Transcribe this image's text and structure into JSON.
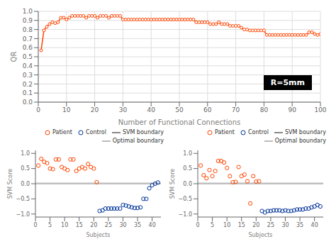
{
  "chart_data": [
    {
      "type": "line",
      "xlabel": "Number of Functional Connections",
      "ylabel": "QR",
      "annotations": [
        "R=5mm"
      ],
      "x": [
        1,
        2,
        3,
        4,
        5,
        6,
        7,
        8,
        9,
        10,
        11,
        12,
        13,
        14,
        15,
        16,
        17,
        18,
        19,
        20,
        21,
        22,
        23,
        24,
        25,
        26,
        27,
        28,
        29,
        30,
        31,
        32,
        33,
        34,
        35,
        36,
        37,
        38,
        39,
        40,
        41,
        42,
        43,
        44,
        45,
        46,
        47,
        48,
        49,
        50,
        51,
        52,
        53,
        54,
        55,
        56,
        57,
        58,
        59,
        60,
        61,
        62,
        63,
        64,
        65,
        66,
        67,
        68,
        69,
        70,
        71,
        72,
        73,
        74,
        75,
        76,
        77,
        78,
        79,
        80,
        81,
        82,
        83,
        84,
        85,
        86,
        87,
        88,
        89,
        90,
        91,
        92,
        93,
        94,
        95,
        96,
        97,
        98,
        99,
        100
      ],
      "values": [
        0.57,
        0.79,
        0.83,
        0.86,
        0.88,
        0.87,
        0.88,
        0.93,
        0.93,
        0.91,
        0.93,
        0.95,
        0.95,
        0.95,
        0.95,
        0.95,
        0.93,
        0.95,
        0.95,
        0.95,
        0.93,
        0.95,
        0.95,
        0.95,
        0.93,
        0.95,
        0.95,
        0.95,
        0.95,
        0.91,
        0.91,
        0.91,
        0.91,
        0.91,
        0.91,
        0.91,
        0.91,
        0.91,
        0.91,
        0.91,
        0.91,
        0.91,
        0.91,
        0.91,
        0.91,
        0.91,
        0.91,
        0.91,
        0.91,
        0.91,
        0.91,
        0.91,
        0.91,
        0.91,
        0.91,
        0.88,
        0.88,
        0.88,
        0.88,
        0.88,
        0.86,
        0.86,
        0.86,
        0.88,
        0.86,
        0.86,
        0.86,
        0.84,
        0.84,
        0.84,
        0.84,
        0.82,
        0.8,
        0.8,
        0.79,
        0.79,
        0.79,
        0.79,
        0.79,
        0.79,
        0.74,
        0.74,
        0.74,
        0.74,
        0.74,
        0.74,
        0.74,
        0.74,
        0.74,
        0.74,
        0.74,
        0.74,
        0.74,
        0.74,
        0.74,
        0.77,
        0.77,
        0.75,
        0.74,
        0.75
      ],
      "color": "#FF4400",
      "marker": "circle",
      "xlim": [
        0,
        100
      ],
      "ylim": [
        0,
        1.0
      ],
      "xticks": [
        0,
        10,
        20,
        30,
        40,
        50,
        60,
        70,
        80,
        90,
        100
      ],
      "yticks": [
        {
          "value": 0,
          "label": "0.0"
        },
        0.1,
        0.2,
        0.3,
        0.4,
        0.5,
        0.6,
        0.7,
        0.8,
        0.9,
        {
          "value": 1.0,
          "label": "1.0"
        }
      ],
      "grid": true
    },
    {
      "type": "scatter",
      "xlabel": "Subjects",
      "ylabel": "SVM Score",
      "series": [
        {
          "name": "Patient",
          "color": "#FF4400",
          "marker": "open_circle",
          "x": [
            1,
            2,
            3,
            4,
            5,
            6,
            7,
            8,
            9,
            10,
            11,
            12,
            13,
            14,
            15,
            16,
            17,
            18,
            19,
            20,
            21
          ],
          "values": [
            0.6,
            0.82,
            0.72,
            0.68,
            0.5,
            0.48,
            0.8,
            0.8,
            0.55,
            0.5,
            0.45,
            0.8,
            0.8,
            0.42,
            0.5,
            0.55,
            0.5,
            0.65,
            0.55,
            0.5,
            0.05
          ]
        },
        {
          "name": "Control",
          "color": "#003399",
          "marker": "open_circle",
          "x": [
            22,
            23,
            24,
            25,
            26,
            27,
            28,
            29,
            30,
            31,
            32,
            33,
            34,
            35,
            36,
            37,
            38,
            39,
            40,
            41,
            42
          ],
          "values": [
            -0.9,
            -0.88,
            -0.82,
            -0.82,
            -0.82,
            -0.82,
            -0.82,
            -0.82,
            -0.7,
            -0.72,
            -0.75,
            -0.78,
            -0.8,
            -0.8,
            -0.78,
            -0.5,
            -0.5,
            -0.15,
            -0.05,
            0.0,
            0.04
          ]
        },
        {
          "name": "SVM boundary",
          "type": "hline",
          "color": "#888888",
          "value": 0
        },
        {
          "name": "Optimal boundary",
          "type": "hline",
          "color": "#BBBBBB",
          "value": 0.02
        }
      ],
      "xlim": [
        0,
        43
      ],
      "ylim": [
        -1.1,
        1.1
      ],
      "xticks": [
        0,
        5,
        10,
        15,
        20,
        25,
        30,
        35,
        40
      ],
      "yticks": [
        {
          "value": -1,
          "label": "−1.0"
        },
        {
          "value": -0.5,
          "label": "−0.5"
        },
        {
          "value": 0,
          "label": "0.0"
        },
        0.5,
        {
          "value": 1,
          "label": "1.0"
        }
      ],
      "legend": "upper right",
      "grid": false
    },
    {
      "type": "scatter",
      "xlabel": "Subjects",
      "ylabel": "SVM Score",
      "series": [
        {
          "name": "Patient",
          "color": "#FF4400",
          "marker": "open_circle",
          "x": [
            1,
            2,
            3,
            4,
            5,
            6,
            7,
            8,
            9,
            10,
            11,
            12,
            13,
            14,
            15,
            16,
            17,
            18,
            19,
            20,
            21
          ],
          "values": [
            0.6,
            0.28,
            0.18,
            0.45,
            0.25,
            0.42,
            0.75,
            0.75,
            0.7,
            0.52,
            0.25,
            0.05,
            0.06,
            0.55,
            0.25,
            0.3,
            0.08,
            -0.65,
            0.25,
            0.07,
            0.08
          ]
        },
        {
          "name": "Control",
          "color": "#003399",
          "marker": "open_circle",
          "x": [
            22,
            23,
            24,
            25,
            26,
            27,
            28,
            29,
            30,
            31,
            32,
            33,
            34,
            35,
            36,
            37,
            38,
            39,
            40,
            41,
            42
          ],
          "values": [
            -0.9,
            -0.95,
            -0.9,
            -0.9,
            -0.88,
            -0.88,
            -0.88,
            -0.9,
            -0.88,
            -0.9,
            -0.9,
            -0.88,
            -0.85,
            -0.85,
            -0.85,
            -0.82,
            -0.82,
            -0.78,
            -0.75,
            -0.7,
            -0.75
          ]
        },
        {
          "name": "SVM boundary",
          "type": "hline",
          "color": "#888888",
          "value": 0
        },
        {
          "name": "Optimal boundary",
          "type": "hline",
          "color": "#BBBBBB",
          "value": 0.02
        }
      ],
      "xlim": [
        0,
        43
      ],
      "ylim": [
        -1.1,
        1.1
      ],
      "xticks": [
        0,
        5,
        10,
        15,
        20,
        25,
        30,
        35,
        40
      ],
      "yticks": [
        {
          "value": -1,
          "label": "−1.0"
        },
        {
          "value": -0.5,
          "label": "−0.5"
        },
        {
          "value": 0,
          "label": "0.0"
        },
        0.5,
        {
          "value": 1,
          "label": "1.0"
        }
      ],
      "legend": "upper right",
      "grid": false
    }
  ]
}
